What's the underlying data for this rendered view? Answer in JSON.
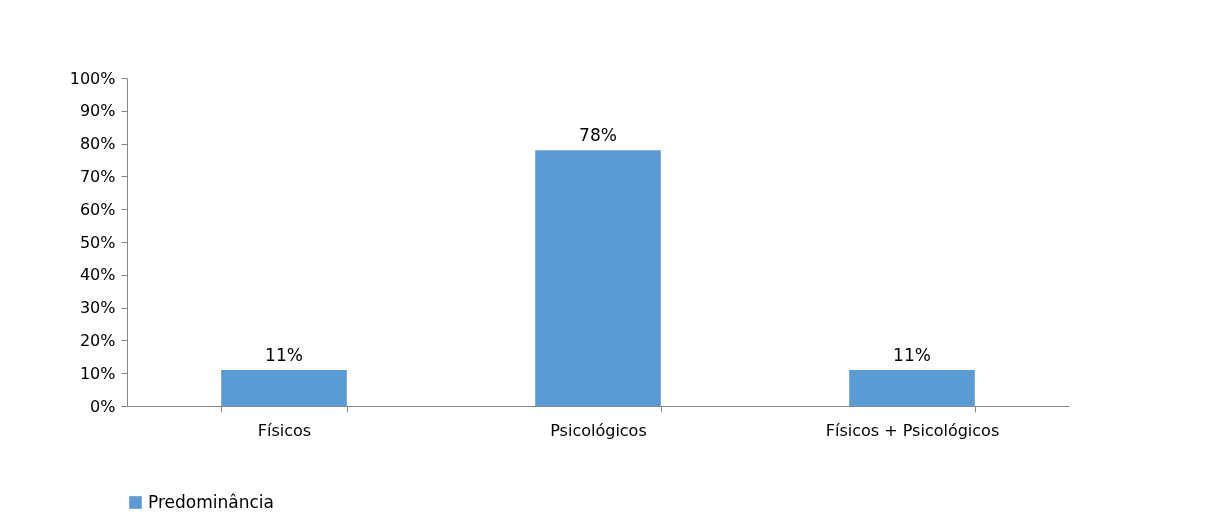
{
  "chart_data": {
    "type": "bar",
    "categories": [
      "Físicos",
      "Psicológicos",
      "Físicos + Psicológicos"
    ],
    "series": [
      {
        "name": "Predominância",
        "color": "#5b9bd5",
        "values": [
          11,
          78,
          11
        ],
        "value_labels": [
          "11%",
          "78%",
          "11%"
        ]
      }
    ],
    "ylim": [
      0,
      100
    ],
    "yticks": [
      {
        "value": 0,
        "label": "0%"
      },
      {
        "value": 10,
        "label": "10%"
      },
      {
        "value": 20,
        "label": "20%"
      },
      {
        "value": 30,
        "label": "30%"
      },
      {
        "value": 40,
        "label": "40%"
      },
      {
        "value": 50,
        "label": "50%"
      },
      {
        "value": 60,
        "label": "60%"
      },
      {
        "value": 70,
        "label": "70%"
      },
      {
        "value": 80,
        "label": "80%"
      },
      {
        "value": 90,
        "label": "90%"
      },
      {
        "value": 100,
        "label": "100%"
      }
    ],
    "grid": false,
    "legend": "bottom"
  }
}
